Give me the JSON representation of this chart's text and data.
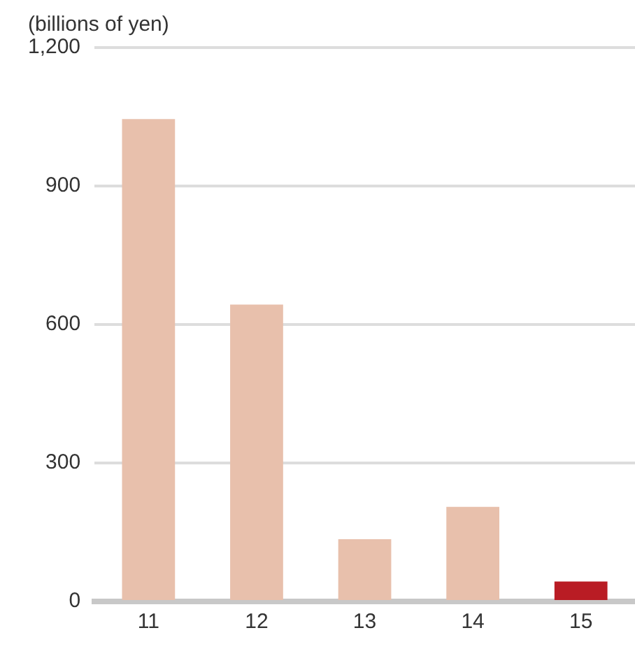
{
  "chart_data": {
    "type": "bar",
    "ylabel": "(billions of yen)",
    "categories": [
      "11",
      "12",
      "13",
      "14",
      "15"
    ],
    "values": [
      1045,
      643,
      135,
      205,
      43
    ],
    "colors": [
      "#e8c0ac",
      "#e8c0ac",
      "#e8c0ac",
      "#e8c0ac",
      "#b91c24"
    ],
    "ylim": [
      0,
      1200
    ],
    "yticks": [
      0,
      300,
      600,
      900,
      {
        "value": 1200,
        "label": "1,200"
      }
    ],
    "grid": "y",
    "legend": false
  }
}
